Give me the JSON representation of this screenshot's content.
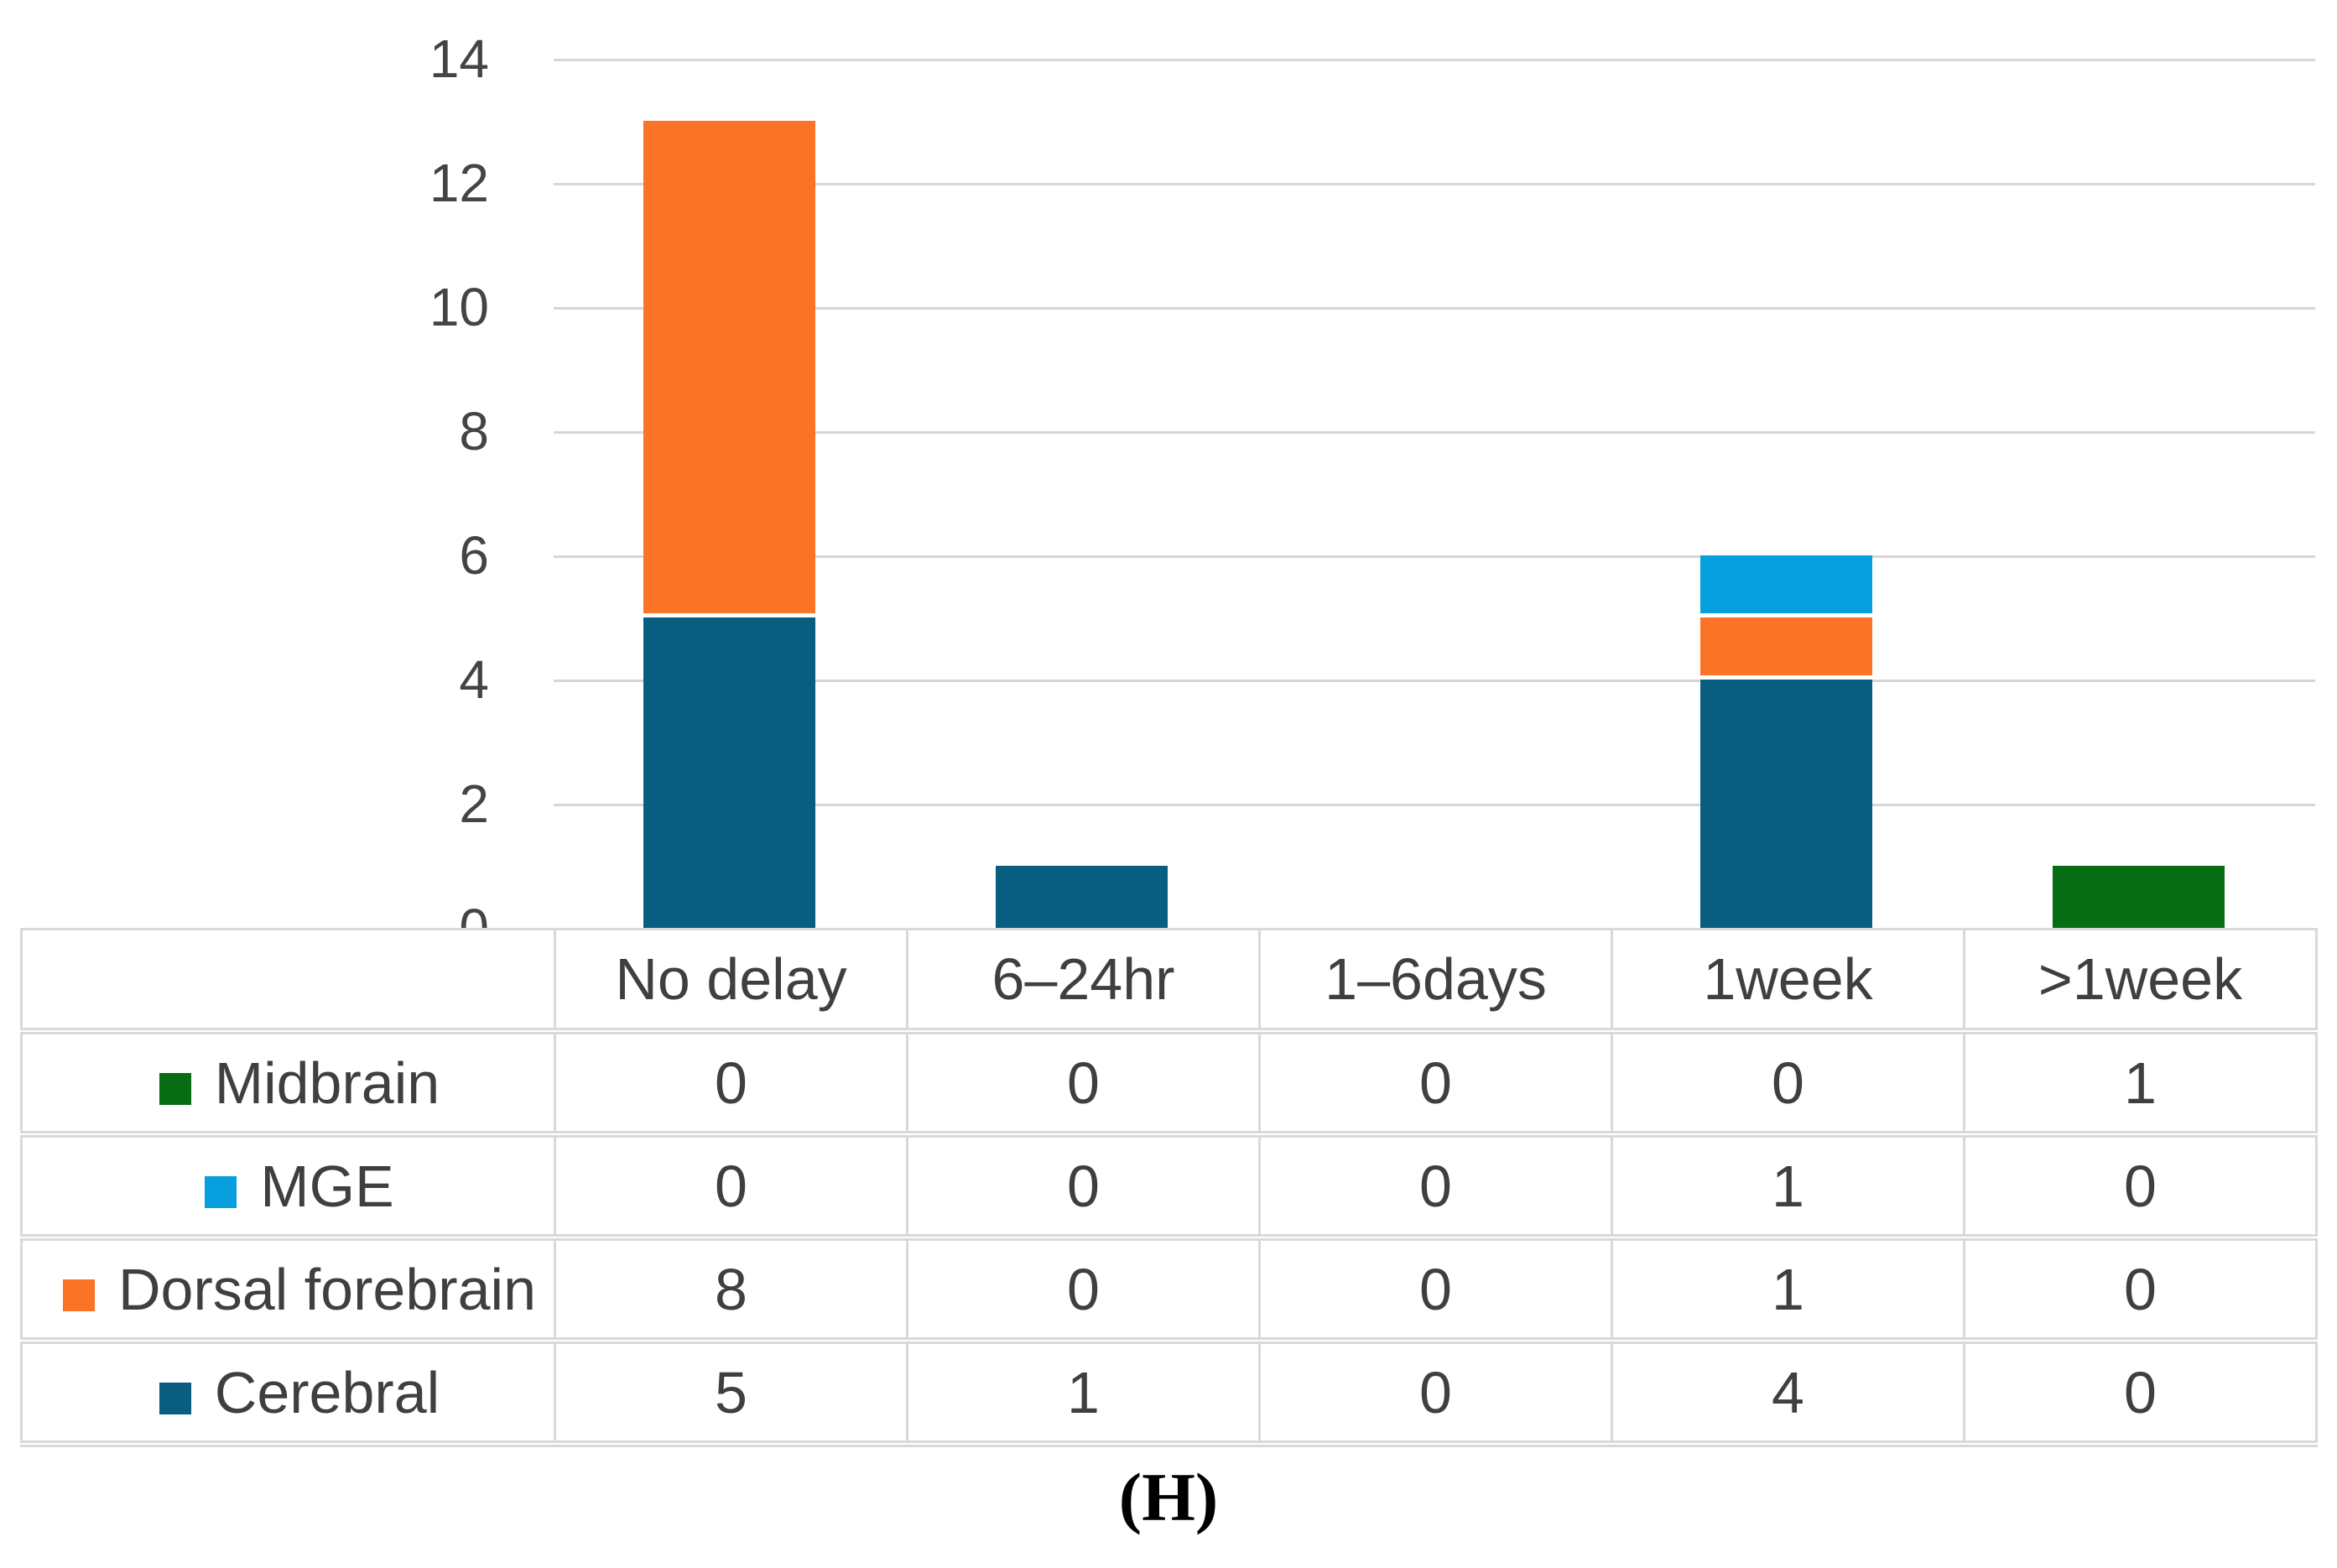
{
  "caption": "(H)",
  "chart_data": {
    "type": "bar",
    "stacked": true,
    "title": "",
    "xlabel": "",
    "ylabel": "",
    "grid": true,
    "legend_position": "table-left",
    "ylim": [
      0,
      14
    ],
    "yticks": [
      14,
      12,
      10,
      8,
      6,
      4,
      2,
      0
    ],
    "categories": [
      "No delay",
      "6–24hr",
      "1–6days",
      "1week",
      ">1week"
    ],
    "series": [
      {
        "name": "Midbrain",
        "color": "#076d15",
        "values": [
          0,
          0,
          0,
          0,
          1
        ]
      },
      {
        "name": "MGE",
        "color": "#079fdd",
        "values": [
          0,
          0,
          0,
          1,
          0
        ]
      },
      {
        "name": "Dorsal forebrain",
        "color": "#fb7327",
        "values": [
          8,
          0,
          0,
          1,
          0
        ]
      },
      {
        "name": "Cerebral",
        "color": "#095e80",
        "values": [
          5,
          1,
          0,
          4,
          0
        ]
      }
    ],
    "stack_order_bottom_to_top": [
      "Cerebral",
      "Dorsal forebrain",
      "MGE",
      "Midbrain"
    ]
  }
}
